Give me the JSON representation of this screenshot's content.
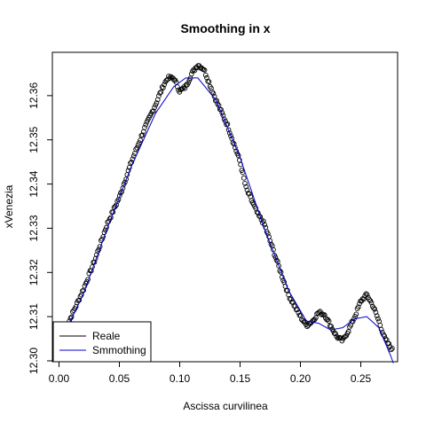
{
  "chart_data": {
    "type": "scatter",
    "title": "Smoothing in x",
    "xlabel": "Ascissa curvilinea",
    "ylabel": "xVenezia",
    "xlim": [
      -0.0055,
      0.2805
    ],
    "ylim": [
      12.2998,
      12.3698
    ],
    "x_ticks": [
      0.0,
      0.05,
      0.1,
      0.15,
      0.2,
      0.25
    ],
    "x_tick_labels": [
      "0.00",
      "0.05",
      "0.10",
      "0.15",
      "0.20",
      "0.25"
    ],
    "y_ticks": [
      12.3,
      12.31,
      12.32,
      12.33,
      12.34,
      12.35,
      12.36
    ],
    "y_tick_labels": [
      "12.30",
      "12.31",
      "12.32",
      "12.33",
      "12.34",
      "12.35",
      "12.36"
    ],
    "grid": false,
    "legend_position": "bottom-left",
    "series": [
      {
        "name": "Reale",
        "kind": "points",
        "color": "#000000",
        "knots": [
          [
            0.005,
            12.3065
          ],
          [
            0.01,
            12.31
          ],
          [
            0.02,
            12.316
          ],
          [
            0.03,
            12.323
          ],
          [
            0.04,
            12.331
          ],
          [
            0.05,
            12.337
          ],
          [
            0.06,
            12.345
          ],
          [
            0.07,
            12.352
          ],
          [
            0.08,
            12.358
          ],
          [
            0.086,
            12.362
          ],
          [
            0.09,
            12.364
          ],
          [
            0.095,
            12.364
          ],
          [
            0.1,
            12.361
          ],
          [
            0.105,
            12.362
          ],
          [
            0.11,
            12.365
          ],
          [
            0.115,
            12.367
          ],
          [
            0.12,
            12.366
          ],
          [
            0.13,
            12.359
          ],
          [
            0.14,
            12.353
          ],
          [
            0.15,
            12.345
          ],
          [
            0.155,
            12.339
          ],
          [
            0.16,
            12.336
          ],
          [
            0.165,
            12.333
          ],
          [
            0.17,
            12.331
          ],
          [
            0.18,
            12.323
          ],
          [
            0.19,
            12.315
          ],
          [
            0.2,
            12.31
          ],
          [
            0.205,
            12.308
          ],
          [
            0.21,
            12.309
          ],
          [
            0.215,
            12.311
          ],
          [
            0.22,
            12.3105
          ],
          [
            0.225,
            12.308
          ],
          [
            0.23,
            12.3055
          ],
          [
            0.235,
            12.3045
          ],
          [
            0.24,
            12.307
          ],
          [
            0.245,
            12.31
          ],
          [
            0.25,
            12.3135
          ],
          [
            0.255,
            12.315
          ],
          [
            0.26,
            12.3125
          ],
          [
            0.265,
            12.309
          ],
          [
            0.27,
            12.305
          ],
          [
            0.276,
            12.3025
          ]
        ]
      },
      {
        "name": "Smmothing",
        "kind": "line",
        "color": "#0000cc",
        "points": [
          [
            0.005,
            12.3065
          ],
          [
            0.02,
            12.315
          ],
          [
            0.04,
            12.33
          ],
          [
            0.06,
            12.344
          ],
          [
            0.08,
            12.356
          ],
          [
            0.095,
            12.362
          ],
          [
            0.105,
            12.364
          ],
          [
            0.115,
            12.364
          ],
          [
            0.13,
            12.359
          ],
          [
            0.15,
            12.346
          ],
          [
            0.17,
            12.33
          ],
          [
            0.19,
            12.316
          ],
          [
            0.205,
            12.309
          ],
          [
            0.215,
            12.3085
          ],
          [
            0.225,
            12.307
          ],
          [
            0.235,
            12.3075
          ],
          [
            0.245,
            12.3095
          ],
          [
            0.255,
            12.31
          ],
          [
            0.265,
            12.3075
          ],
          [
            0.275,
            12.301
          ],
          [
            0.277,
            12.2995
          ]
        ]
      }
    ]
  }
}
